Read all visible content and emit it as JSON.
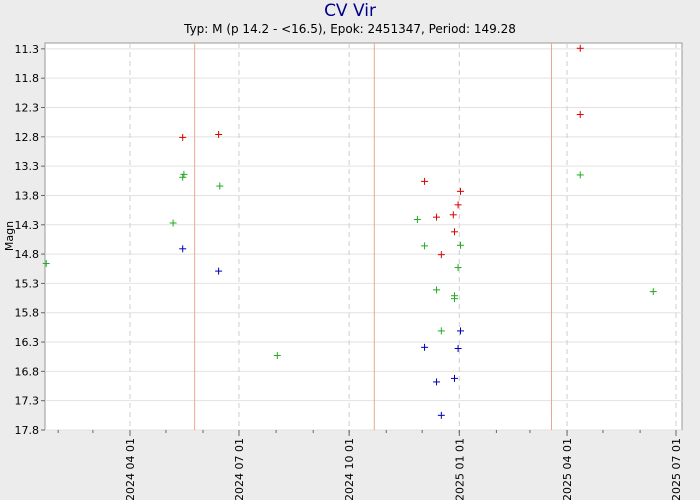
{
  "chart_data": {
    "type": "scatter",
    "title": "CV Vir",
    "subtitle": "Typ: M (p 14.2 - <16.5), Epok: 2451347, Period: 149.28",
    "ylabel": "Magn",
    "xlabel": "",
    "y_inverted": true,
    "ylim": [
      11.2,
      17.8
    ],
    "xlim": [
      "2024-01-21",
      "2025-07-06"
    ],
    "y_ticks": [
      "11.3",
      "11.8",
      "12.3",
      "12.8",
      "13.3",
      "13.8",
      "14.3",
      "14.8",
      "15.3",
      "15.8",
      "16.3",
      "16.8",
      "17.3",
      "17.8"
    ],
    "x_ticks": [
      "2024 04 01",
      "2024 07 01",
      "2024 10 01",
      "2025 01 01",
      "2025 04 01",
      "2025 07 01"
    ],
    "grid": true,
    "series": [
      {
        "color": "#dd0000",
        "points": [
          {
            "x": "2024-05-15",
            "y": 12.81
          },
          {
            "x": "2024-06-14",
            "y": 12.76
          },
          {
            "x": "2024-12-03",
            "y": 13.56
          },
          {
            "x": "2024-12-13",
            "y": 14.17
          },
          {
            "x": "2024-12-17",
            "y": 14.81
          },
          {
            "x": "2024-12-27",
            "y": 14.13
          },
          {
            "x": "2024-12-28",
            "y": 14.42
          },
          {
            "x": "2024-12-31",
            "y": 13.96
          },
          {
            "x": "2025-01-02",
            "y": 13.73
          },
          {
            "x": "2025-04-12",
            "y": 11.29
          },
          {
            "x": "2025-04-12",
            "y": 12.42
          }
        ]
      },
      {
        "color": "#22aa22",
        "points": [
          {
            "x": "2024-01-22",
            "y": 14.96
          },
          {
            "x": "2024-05-07",
            "y": 14.27
          },
          {
            "x": "2024-05-15",
            "y": 13.49
          },
          {
            "x": "2024-05-16",
            "y": 13.44
          },
          {
            "x": "2024-06-15",
            "y": 13.64
          },
          {
            "x": "2024-08-02",
            "y": 16.53
          },
          {
            "x": "2024-11-27",
            "y": 14.21
          },
          {
            "x": "2024-12-03",
            "y": 14.66
          },
          {
            "x": "2024-12-13",
            "y": 15.41
          },
          {
            "x": "2024-12-17",
            "y": 16.11
          },
          {
            "x": "2024-12-28",
            "y": 15.51
          },
          {
            "x": "2024-12-28",
            "y": 15.56
          },
          {
            "x": "2024-12-31",
            "y": 15.03
          },
          {
            "x": "2025-01-02",
            "y": 14.65
          },
          {
            "x": "2025-04-12",
            "y": 13.45
          },
          {
            "x": "2025-06-12",
            "y": 15.44
          }
        ]
      },
      {
        "color": "#0000bb",
        "points": [
          {
            "x": "2024-05-15",
            "y": 14.71
          },
          {
            "x": "2024-06-14",
            "y": 15.09
          },
          {
            "x": "2024-12-03",
            "y": 16.39
          },
          {
            "x": "2024-12-13",
            "y": 16.98
          },
          {
            "x": "2024-12-17",
            "y": 17.55
          },
          {
            "x": "2024-12-28",
            "y": 16.92
          },
          {
            "x": "2024-12-31",
            "y": 16.41
          },
          {
            "x": "2025-01-02",
            "y": 16.11
          }
        ]
      }
    ],
    "phase_markers": [
      "2024-05-25",
      "2024-10-22",
      "2025-03-19"
    ],
    "phase_marker_color": "#e8a890"
  }
}
